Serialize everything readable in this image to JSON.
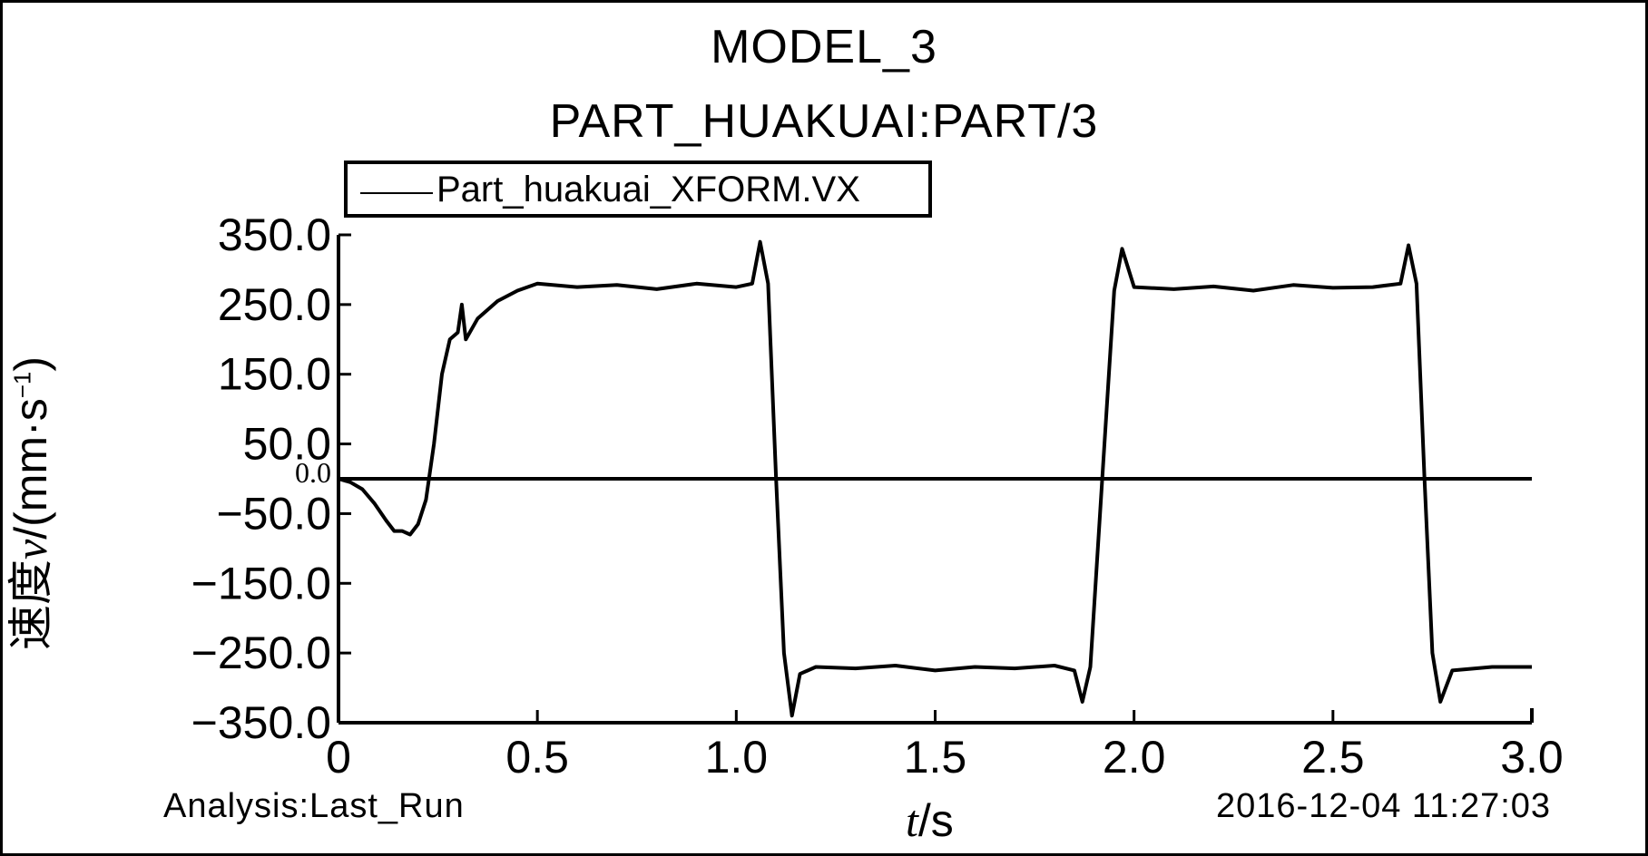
{
  "header": {
    "title": "MODEL_3",
    "subtitle": "PART_HUAKUAI:PART/3"
  },
  "footer": {
    "analysis": "Analysis:Last_Run",
    "timestamp": "2016-12-04 11:27:03"
  },
  "chart_data": {
    "type": "line",
    "title": "MODEL_3",
    "subtitle": "PART_HUAKUAI:PART/3",
    "xlabel": {
      "italic": "t",
      "rest": "/s"
    },
    "ylabel": {
      "chinese": "速度",
      "variable": "v",
      "unit_prefix": "/(mm·s",
      "unit_sup": "−1",
      "unit_suffix": ")"
    },
    "legend": {
      "position": "top-left",
      "entries": [
        "Part_huakuai_XFORM.VX"
      ]
    },
    "xlim": [
      0,
      3.0
    ],
    "ylim": [
      -350,
      350
    ],
    "x_ticks": [
      0,
      0.5,
      1.0,
      1.5,
      2.0,
      2.5,
      3.0
    ],
    "x_tick_labels": [
      "0",
      "0.5",
      "1.0",
      "1.5",
      "2.0",
      "2.5",
      "3.0"
    ],
    "y_ticks": [
      350,
      250,
      150,
      50,
      0,
      -50,
      -150,
      -250,
      -350
    ],
    "y_tick_labels": [
      "350.0",
      "250.0",
      "150.0",
      "50.0",
      "0.0",
      "−50.0",
      "−150.0",
      "−250.0",
      "−350.0"
    ],
    "grid": false,
    "zero_line": true,
    "line_color": "#000000",
    "series": [
      {
        "name": "Part_huakuai_XFORM.VX",
        "x": [
          0,
          0.03,
          0.06,
          0.09,
          0.12,
          0.14,
          0.16,
          0.18,
          0.2,
          0.22,
          0.24,
          0.26,
          0.28,
          0.3,
          0.31,
          0.32,
          0.35,
          0.4,
          0.45,
          0.5,
          0.6,
          0.7,
          0.8,
          0.9,
          1.0,
          1.04,
          1.06,
          1.08,
          1.1,
          1.12,
          1.14,
          1.16,
          1.2,
          1.3,
          1.4,
          1.5,
          1.6,
          1.7,
          1.8,
          1.85,
          1.87,
          1.89,
          1.92,
          1.95,
          1.97,
          2.0,
          2.1,
          2.2,
          2.3,
          2.4,
          2.5,
          2.6,
          2.67,
          2.69,
          2.71,
          2.73,
          2.75,
          2.77,
          2.8,
          2.9,
          3.0
        ],
        "y": [
          0,
          -5,
          -15,
          -35,
          -60,
          -75,
          -75,
          -80,
          -65,
          -30,
          50,
          150,
          200,
          210,
          250,
          200,
          230,
          255,
          270,
          280,
          275,
          278,
          272,
          280,
          275,
          280,
          340,
          280,
          0,
          -250,
          -340,
          -280,
          -270,
          -272,
          -268,
          -275,
          -270,
          -272,
          -268,
          -275,
          -320,
          -270,
          0,
          270,
          330,
          275,
          272,
          276,
          270,
          278,
          274,
          275,
          280,
          335,
          280,
          0,
          -250,
          -320,
          -275,
          -270,
          -270
        ]
      }
    ]
  }
}
